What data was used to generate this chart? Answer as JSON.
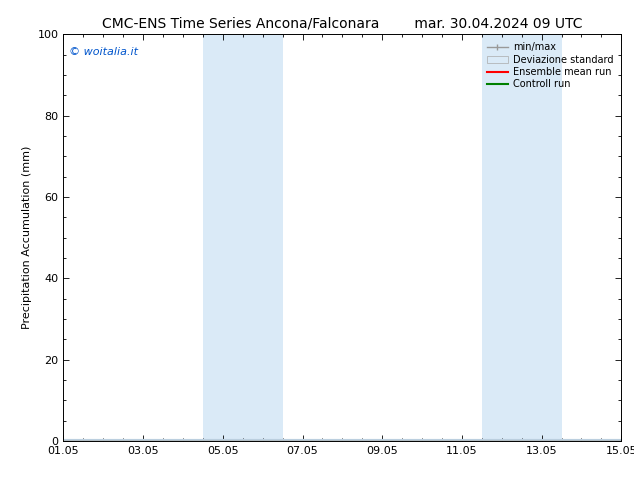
{
  "title": "CMC-ENS Time Series Ancona/Falconara     mar. 30.04.2024 09 UTC",
  "title_left": "CMC-ENS Time Series Ancona/Falconara",
  "title_right": "mar. 30.04.2024 09 UTC",
  "ylabel": "Precipitation Accumulation (mm)",
  "xlabel": "",
  "ylim": [
    0,
    100
  ],
  "yticks": [
    0,
    20,
    40,
    60,
    80,
    100
  ],
  "xtick_positions": [
    0,
    2,
    4,
    6,
    8,
    10,
    12,
    14
  ],
  "xtick_labels": [
    "01.05",
    "03.05",
    "05.05",
    "07.05",
    "09.05",
    "11.05",
    "13.05",
    "15.05"
  ],
  "shaded_regions": [
    {
      "xmin": 3.5,
      "xmax": 5.5,
      "color": "#daeaf7"
    },
    {
      "xmin": 10.5,
      "xmax": 12.5,
      "color": "#daeaf7"
    }
  ],
  "watermark_text": "© woitalia.it",
  "watermark_color": "#0055cc",
  "background_color": "#ffffff",
  "legend_items": [
    {
      "label": "min/max",
      "color": "#aaaaaa"
    },
    {
      "label": "Deviazione standard",
      "color": "#ccddee"
    },
    {
      "label": "Ensemble mean run",
      "color": "#ff0000"
    },
    {
      "label": "Controll run",
      "color": "#008000"
    }
  ],
  "title_fontsize": 10,
  "axis_fontsize": 8,
  "tick_fontsize": 8,
  "watermark_fontsize": 8
}
